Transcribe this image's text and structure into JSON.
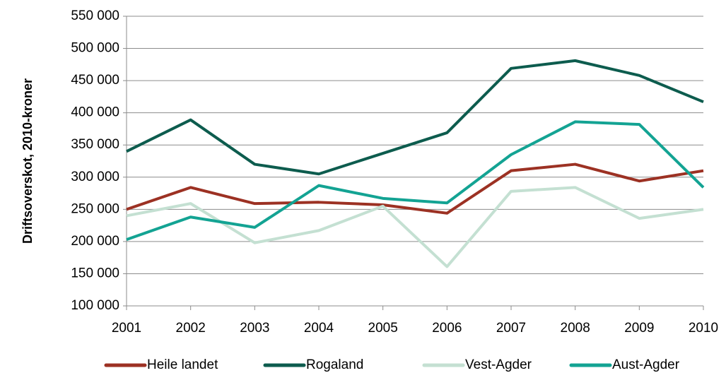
{
  "chart_data": {
    "type": "line",
    "y_label": "Driftsoverskot,   2010-kroner",
    "categories": [
      "2001",
      "2002",
      "2003",
      "2004",
      "2005",
      "2006",
      "2007",
      "2008",
      "2009",
      "2010"
    ],
    "series": [
      {
        "name": "Heile landet",
        "color": "#9c3123",
        "values": [
          250000,
          284000,
          259000,
          261000,
          257000,
          244000,
          310000,
          320000,
          294000,
          310000
        ]
      },
      {
        "name": "Rogaland",
        "color": "#0d5c4e",
        "values": [
          340000,
          389000,
          320000,
          305000,
          337000,
          369000,
          469000,
          481000,
          458000,
          417000
        ]
      },
      {
        "name": "Vest-Agder",
        "color": "#c4e0d2",
        "values": [
          240000,
          259000,
          198000,
          217000,
          255000,
          161000,
          278000,
          284000,
          236000,
          250000
        ]
      },
      {
        "name": "Aust-Agder",
        "color": "#13a393",
        "values": [
          203000,
          238000,
          222000,
          287000,
          267000,
          260000,
          335000,
          386000,
          382000,
          284000
        ]
      }
    ],
    "ylim": [
      100000,
      550000
    ],
    "yticks": [
      {
        "value": 100000,
        "label": "100 000"
      },
      {
        "value": 150000,
        "label": "150 000"
      },
      {
        "value": 200000,
        "label": "200 000"
      },
      {
        "value": 250000,
        "label": "250 000"
      },
      {
        "value": 300000,
        "label": "300 000"
      },
      {
        "value": 350000,
        "label": "350 000"
      },
      {
        "value": 400000,
        "label": "400 000"
      },
      {
        "value": 450000,
        "label": "450 000"
      },
      {
        "value": 500000,
        "label": "500 000"
      },
      {
        "value": 550000,
        "label": "550 000"
      }
    ],
    "grid": true,
    "legend": "bottom"
  }
}
